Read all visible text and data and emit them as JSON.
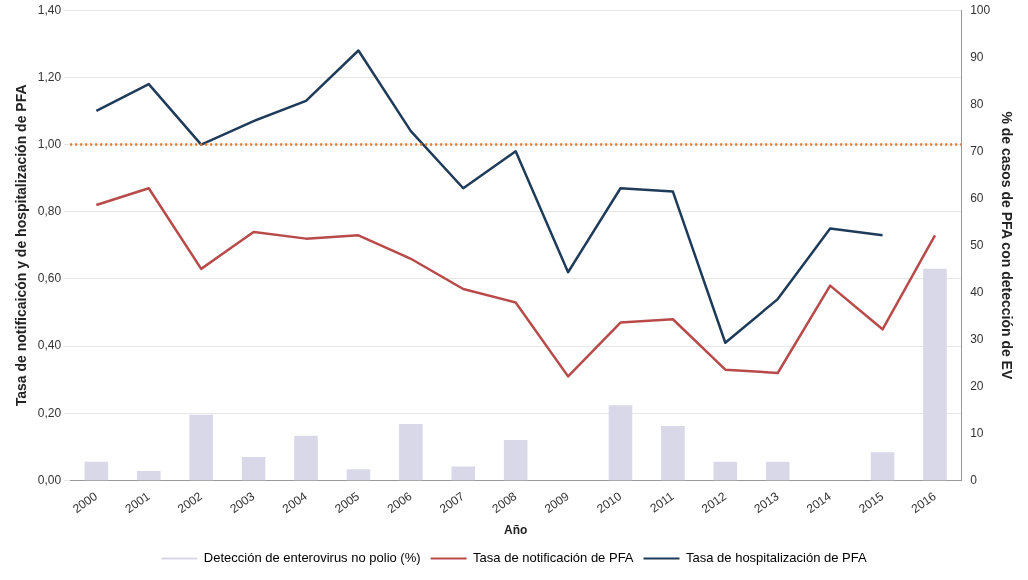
{
  "chart_data": {
    "type": "bar",
    "xlabel": "Año",
    "ylabel": "Tasa de notificaicón y de hospitalización de PFA",
    "y2label": "% de casos de PFA con detección de EV",
    "categories": [
      "2000",
      "2001",
      "2002",
      "2003",
      "2004",
      "2005",
      "2006",
      "2007",
      "2008",
      "2009",
      "2010",
      "2011",
      "2012",
      "2013",
      "2014",
      "2015",
      "2016"
    ],
    "series": [
      {
        "name": "Detección de enterovirus no polio (%)",
        "axis": "y2",
        "color": "#d9d8e8",
        "values": [
          4,
          2,
          14,
          5,
          9.5,
          2.4,
          12,
          3,
          8.6,
          0,
          16,
          11.6,
          4,
          4,
          0,
          6,
          45
        ]
      },
      {
        "name": "Tasa de notificación de PFA",
        "type": "line",
        "color": "#b84a4a",
        "values": [
          0.82,
          0.87,
          0.63,
          0.74,
          0.72,
          0.73,
          0.66,
          0.57,
          0.53,
          0.31,
          0.47,
          0.48,
          0.33,
          0.32,
          0.58,
          0.45,
          0.73
        ]
      },
      {
        "name": "Tasa de hospitalización de PFA",
        "type": "line",
        "color": "#1f3b5a",
        "values": [
          1.1,
          1.18,
          1.0,
          1.07,
          1.13,
          1.28,
          1.04,
          0.87,
          0.98,
          0.62,
          0.87,
          0.86,
          0.41,
          0.54,
          0.75,
          0.73,
          null
        ]
      }
    ],
    "ylim": [
      0,
      1.4
    ],
    "yticks": [
      {
        "value": 0,
        "label": "0,00"
      },
      {
        "value": 0.2,
        "label": "0,20"
      },
      {
        "value": 0.4,
        "label": "0,40"
      },
      {
        "value": 0.6,
        "label": "0,60"
      },
      {
        "value": 0.8,
        "label": "0,80"
      },
      {
        "value": 1,
        "label": "1,00"
      },
      {
        "value": 1.2,
        "label": "1,20"
      },
      {
        "value": 1.4,
        "label": "1,40"
      }
    ],
    "y2lim": [
      0,
      100
    ],
    "y2ticks": [
      0,
      10,
      20,
      30,
      40,
      50,
      60,
      70,
      80,
      90,
      100
    ],
    "ref_lines": [
      {
        "axis": "y",
        "value": 1,
        "color": "#e8742a",
        "line_style": "dotted"
      }
    ],
    "grid": "y",
    "legend": "bottom",
    "marker": "none",
    "line_style": "solid"
  }
}
